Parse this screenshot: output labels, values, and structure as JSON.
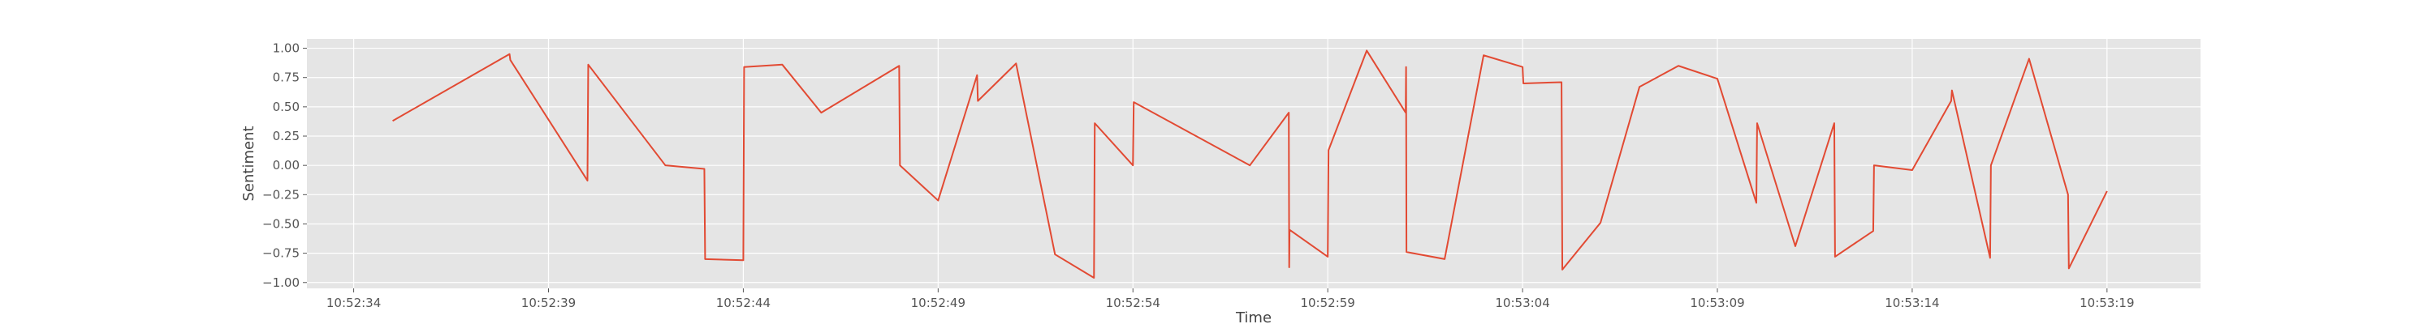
{
  "chart_data": {
    "type": "line",
    "title": "",
    "xlabel": "Time",
    "ylabel": "Sentiment",
    "grid": true,
    "legend": "none",
    "xlim": [
      -1.2,
      47.4
    ],
    "ylim": [
      -1.05,
      1.08
    ],
    "x_axis_start": "10:52:34",
    "x_ticks": [
      {
        "value": 0,
        "label": "10:52:34"
      },
      {
        "value": 5,
        "label": "10:52:39"
      },
      {
        "value": 10,
        "label": "10:52:44"
      },
      {
        "value": 15,
        "label": "10:52:49"
      },
      {
        "value": 20,
        "label": "10:52:54"
      },
      {
        "value": 25,
        "label": "10:52:59"
      },
      {
        "value": 30,
        "label": "10:53:04"
      },
      {
        "value": 35,
        "label": "10:53:09"
      },
      {
        "value": 40,
        "label": "10:53:14"
      },
      {
        "value": 45,
        "label": "10:53:19"
      }
    ],
    "y_ticks": [
      {
        "value": 1.0,
        "label": "1.00"
      },
      {
        "value": 0.75,
        "label": "0.75"
      },
      {
        "value": 0.5,
        "label": "0.50"
      },
      {
        "value": 0.25,
        "label": "0.25"
      },
      {
        "value": 0.0,
        "label": "0.00"
      },
      {
        "value": -0.25,
        "label": "−0.25"
      },
      {
        "value": -0.5,
        "label": "−0.50"
      },
      {
        "value": -0.75,
        "label": "−0.75"
      },
      {
        "value": -1.0,
        "label": "−1.00"
      }
    ],
    "series": [
      {
        "name": "",
        "color": "#e24a33",
        "x": [
          1,
          4,
          4.02,
          6,
          6.02,
          8,
          9,
          9.02,
          10,
          10.02,
          11,
          12,
          14,
          14.02,
          15,
          16,
          16.02,
          17,
          18,
          19,
          19.02,
          20,
          20.02,
          23,
          24,
          24.01,
          24.02,
          25,
          25.02,
          26,
          27,
          27.01,
          27.02,
          28,
          29,
          30,
          30.02,
          31,
          31.02,
          32,
          33,
          34,
          35,
          36,
          36.02,
          37,
          38,
          38.02,
          39,
          39.02,
          40,
          41,
          41.02,
          42,
          42.02,
          43,
          44,
          44.02,
          45
        ],
        "y": [
          0.38,
          0.95,
          0.9,
          -0.13,
          0.86,
          0.0,
          -0.03,
          -0.8,
          -0.81,
          0.84,
          0.86,
          0.45,
          0.85,
          0.0,
          -0.3,
          0.77,
          0.55,
          0.87,
          -0.76,
          -0.96,
          0.36,
          0.0,
          0.54,
          0.0,
          0.45,
          -0.87,
          -0.55,
          -0.78,
          0.13,
          0.98,
          0.45,
          0.84,
          -0.74,
          -0.8,
          0.94,
          0.84,
          0.7,
          0.71,
          -0.89,
          -0.49,
          0.67,
          0.85,
          0.74,
          -0.32,
          0.36,
          -0.69,
          0.36,
          -0.78,
          -0.56,
          0.0,
          -0.04,
          0.55,
          0.64,
          -0.79,
          -0.0,
          0.91,
          -0.25,
          -0.88,
          -0.22
        ]
      }
    ]
  },
  "style": {
    "plot_background": "#e5e5e5",
    "grid_color": "#ffffff",
    "line_color": "#e24a33",
    "text_color": "#555555"
  }
}
